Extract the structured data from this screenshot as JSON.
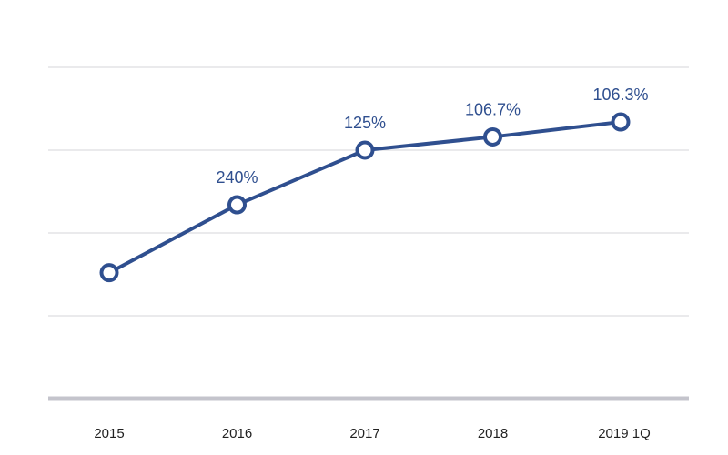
{
  "chart_data": {
    "type": "line",
    "categories": [
      "2015",
      "2016",
      "2017",
      "2018",
      "2019 1Q"
    ],
    "series": [
      {
        "values": [
          3.8,
          5.85,
          7.5,
          7.9,
          8.35
        ],
        "data_labels": [
          "",
          "240%",
          "125%",
          "106.7%",
          "106.3%"
        ]
      }
    ],
    "ylim": [
      0,
      10
    ],
    "grid": true,
    "colors": {
      "line": "#2f4f8f",
      "label": "#2f4f8f"
    }
  }
}
